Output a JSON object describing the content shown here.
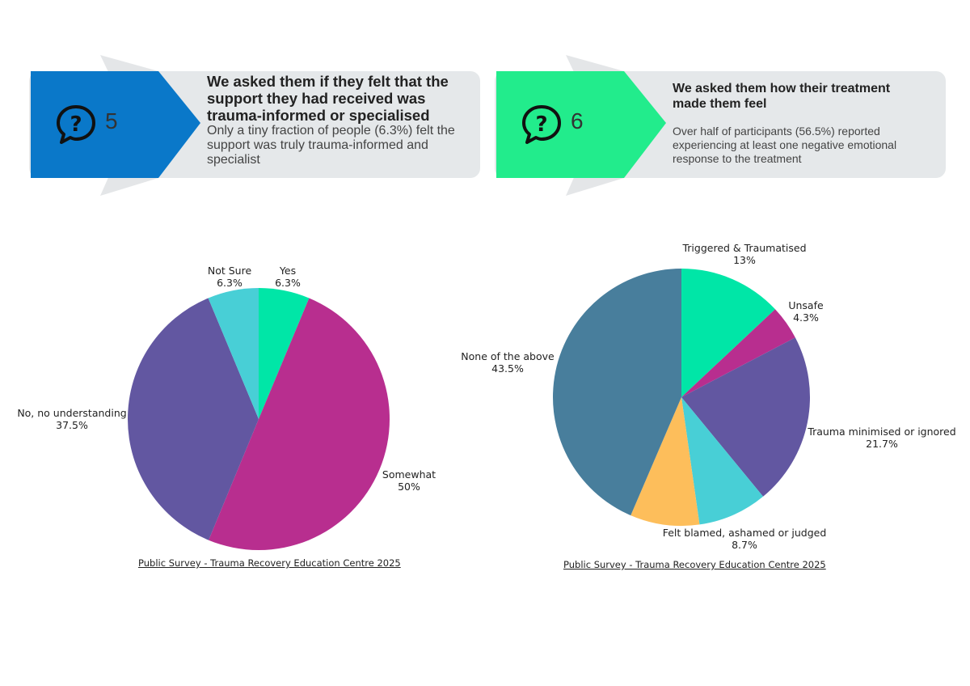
{
  "cards": [
    {
      "number": "5",
      "heading": "We asked them if they felt that the support they had received was trauma-informed or specialised",
      "body": "Only a tiny fraction of people (6.3%) felt the support was truly trauma-informed and specialist",
      "icon": "question-bubble-icon",
      "accent": "#0a78c9"
    },
    {
      "number": "6",
      "heading": "We asked them how their treatment made them feel",
      "body": "Over half of participants (56.5%) reported experiencing at least one negative emotional response to the treatment",
      "icon": "question-bubble-icon",
      "accent": "#22ec8c"
    }
  ],
  "chart_data": [
    {
      "type": "pie",
      "source": "Public Survey - Trauma Recovery Education Centre 2025",
      "slices": [
        {
          "label": "Yes",
          "value_label": "6.3%",
          "value": 6.3,
          "color": "#00e6a7"
        },
        {
          "label": "Somewhat",
          "value_label": "50%",
          "value": 50,
          "color": "#b82e8f"
        },
        {
          "label": "No, no understanding",
          "value_label": "37.5%",
          "value": 37.5,
          "color": "#6257a1"
        },
        {
          "label": "Not Sure",
          "value_label": "6.3%",
          "value": 6.3,
          "color": "#48cfd6"
        }
      ]
    },
    {
      "type": "pie",
      "source": "Public Survey - Trauma Recovery Education Centre 2025",
      "slices": [
        {
          "label": "Triggered & Traumatised",
          "value_label": "13%",
          "value": 13,
          "color": "#00e6a7"
        },
        {
          "label": "Unsafe",
          "value_label": "4.3%",
          "value": 4.3,
          "color": "#b82e8f"
        },
        {
          "label": "Trauma minimised or ignored",
          "value_label": "21.7%",
          "value": 21.7,
          "color": "#6257a1"
        },
        {
          "label": "Felt blamed, ashamed or judged",
          "value_label": "8.7%",
          "value": 8.7,
          "color": "#48cfd6"
        },
        {
          "label": "",
          "value_label": "",
          "value": 8.7,
          "color": "#fdbe5b"
        },
        {
          "label": "None of the above",
          "value_label": "43.5%",
          "value": 43.5,
          "color": "#487e9c"
        }
      ]
    }
  ]
}
